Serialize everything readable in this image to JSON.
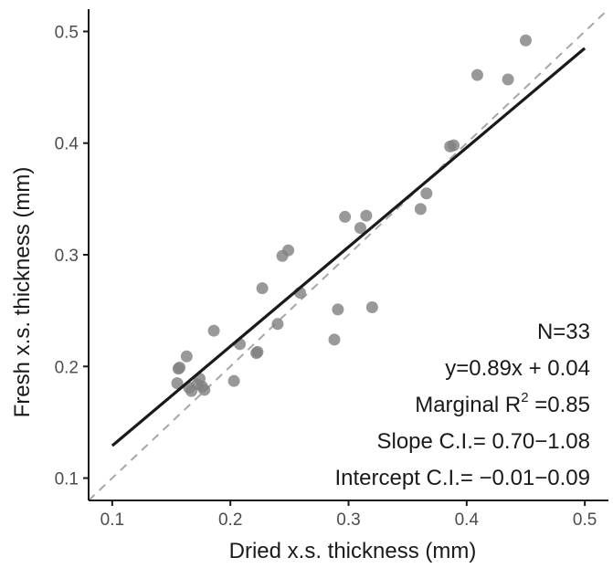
{
  "chart_data": {
    "type": "scatter",
    "xlabel": "Dried x.s. thickness (mm)",
    "ylabel": "Fresh x.s. thickness (mm)",
    "xlim": [
      0.08,
      0.52
    ],
    "ylim": [
      0.08,
      0.52
    ],
    "x_ticks": [
      "0.1",
      "0.2",
      "0.3",
      "0.4",
      "0.5"
    ],
    "y_ticks": [
      "0.1",
      "0.2",
      "0.3",
      "0.4",
      "0.5"
    ],
    "grid": false,
    "point_color": "#808080",
    "fit_line_color": "#1a1a1a",
    "identity_line_color": "#a6a6a6",
    "points": [
      {
        "x": 0.155,
        "y": 0.185
      },
      {
        "x": 0.156,
        "y": 0.198
      },
      {
        "x": 0.157,
        "y": 0.199
      },
      {
        "x": 0.163,
        "y": 0.209
      },
      {
        "x": 0.165,
        "y": 0.181
      },
      {
        "x": 0.167,
        "y": 0.178
      },
      {
        "x": 0.172,
        "y": 0.184
      },
      {
        "x": 0.174,
        "y": 0.189
      },
      {
        "x": 0.176,
        "y": 0.182
      },
      {
        "x": 0.178,
        "y": 0.179
      },
      {
        "x": 0.186,
        "y": 0.232
      },
      {
        "x": 0.203,
        "y": 0.187
      },
      {
        "x": 0.208,
        "y": 0.22
      },
      {
        "x": 0.222,
        "y": 0.212
      },
      {
        "x": 0.223,
        "y": 0.213
      },
      {
        "x": 0.227,
        "y": 0.27
      },
      {
        "x": 0.24,
        "y": 0.238
      },
      {
        "x": 0.244,
        "y": 0.299
      },
      {
        "x": 0.249,
        "y": 0.304
      },
      {
        "x": 0.259,
        "y": 0.266
      },
      {
        "x": 0.288,
        "y": 0.224
      },
      {
        "x": 0.291,
        "y": 0.251
      },
      {
        "x": 0.297,
        "y": 0.334
      },
      {
        "x": 0.31,
        "y": 0.324
      },
      {
        "x": 0.315,
        "y": 0.335
      },
      {
        "x": 0.32,
        "y": 0.253
      },
      {
        "x": 0.361,
        "y": 0.341
      },
      {
        "x": 0.366,
        "y": 0.355
      },
      {
        "x": 0.389,
        "y": 0.398
      },
      {
        "x": 0.409,
        "y": 0.461
      },
      {
        "x": 0.435,
        "y": 0.457
      },
      {
        "x": 0.45,
        "y": 0.492
      },
      {
        "x": 0.386,
        "y": 0.397
      }
    ],
    "fit_line": {
      "x": [
        0.1,
        0.5
      ],
      "y": [
        0.129,
        0.485
      ]
    },
    "identity_line": {
      "x": [
        0.08,
        0.52
      ],
      "y": [
        0.08,
        0.52
      ]
    },
    "annotations": {
      "n": "N=33",
      "equation": "y=0.89x + 0.04",
      "r2_prefix": "Marginal R",
      "r2_sup": "2",
      "r2_suffix": " =0.85",
      "slope_ci": "Slope C.I.= 0.70−1.08",
      "intercept_ci": "Intercept C.I.= −0.01−0.09"
    }
  }
}
